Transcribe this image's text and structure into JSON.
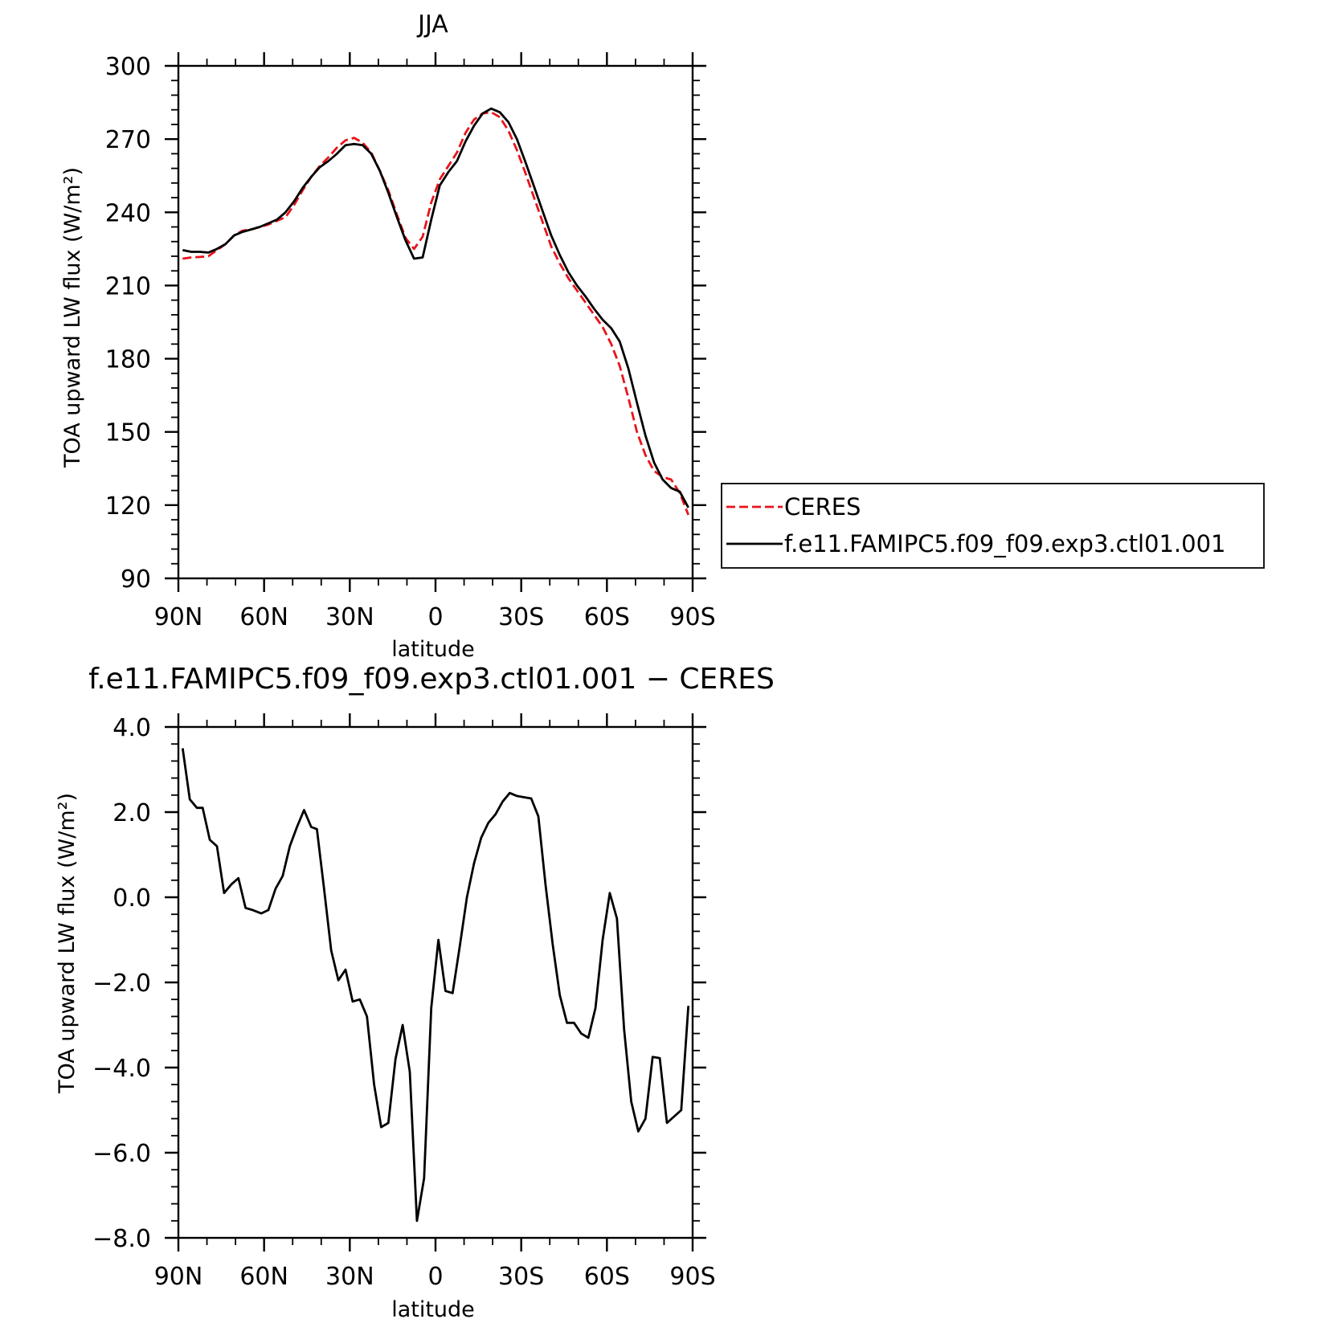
{
  "chart_data": [
    {
      "type": "line",
      "title": "JJA",
      "xlabel": "latitude",
      "ylabel": "TOA upward LW flux (W/m²)",
      "xlim": [
        -90,
        90
      ],
      "ylim": [
        90,
        300
      ],
      "x_ticks": [
        -90,
        -60,
        -30,
        0,
        30,
        60,
        90
      ],
      "x_tick_labels": [
        "90N",
        "60N",
        "30N",
        "0",
        "30S",
        "60S",
        "90S"
      ],
      "y_ticks": [
        90,
        120,
        150,
        180,
        210,
        240,
        270,
        300
      ],
      "y_tick_labels": [
        "90",
        "120",
        "150",
        "180",
        "210",
        "240",
        "270",
        "300"
      ],
      "legend": "right",
      "series": [
        {
          "name": "CERES",
          "color": "#e8141b",
          "dash": true,
          "x": [
            -88.5,
            -85.5,
            -82.5,
            -79.5,
            -76.5,
            -73.5,
            -70.5,
            -67.5,
            -64.5,
            -61.5,
            -58.5,
            -55.5,
            -52.5,
            -49.5,
            -46.5,
            -43.5,
            -40.5,
            -37.5,
            -34.5,
            -31.5,
            -28.5,
            -25.5,
            -22.5,
            -19.5,
            -16.5,
            -13.5,
            -10.5,
            -7.5,
            -4.5,
            -1.5,
            1.5,
            4.5,
            7.5,
            10.5,
            13.5,
            16.5,
            19.5,
            22.5,
            25.5,
            28.5,
            31.5,
            34.5,
            37.5,
            40.5,
            43.5,
            46.5,
            49.5,
            52.5,
            55.5,
            58.5,
            61.5,
            64.5,
            67.5,
            70.5,
            73.5,
            76.5,
            79.5,
            82.5,
            85.5,
            88.5
          ],
          "y": [
            221.0,
            221.5,
            221.7,
            222.0,
            224.5,
            227.0,
            230.5,
            232.5,
            233.0,
            234.0,
            235.0,
            236.5,
            238.0,
            243.0,
            249.0,
            254.5,
            259.0,
            262.5,
            266.5,
            269.5,
            270.5,
            268.5,
            264.5,
            257.0,
            249.0,
            239.0,
            229.5,
            225.0,
            230.0,
            244.0,
            253.5,
            259.0,
            264.5,
            272.5,
            278.0,
            280.5,
            281.0,
            279.0,
            273.5,
            265.5,
            256.0,
            246.0,
            236.0,
            226.0,
            219.0,
            213.0,
            208.0,
            203.0,
            198.0,
            193.0,
            186.0,
            177.0,
            164.0,
            150.0,
            140.5,
            134.0,
            131.5,
            130.5,
            125.0,
            116.0
          ]
        },
        {
          "name": "f.e11.FAMIPC5.f09_f09.exp3.ctl01.001",
          "color": "#000000",
          "dash": false,
          "x": [
            -88.5,
            -85.5,
            -82.5,
            -79.5,
            -76.5,
            -73.5,
            -70.5,
            -67.5,
            -64.5,
            -61.5,
            -58.5,
            -55.5,
            -52.5,
            -49.5,
            -46.5,
            -43.5,
            -40.5,
            -37.5,
            -34.5,
            -31.5,
            -28.5,
            -25.5,
            -22.5,
            -19.5,
            -16.5,
            -13.5,
            -10.5,
            -7.5,
            -4.5,
            -1.5,
            1.5,
            4.5,
            7.5,
            10.5,
            13.5,
            16.5,
            19.5,
            22.5,
            25.5,
            28.5,
            31.5,
            34.5,
            37.5,
            40.5,
            43.5,
            46.5,
            49.5,
            52.5,
            55.5,
            58.5,
            61.5,
            64.5,
            67.5,
            70.5,
            73.5,
            76.5,
            79.5,
            82.5,
            85.5,
            88.5
          ],
          "y": [
            224.5,
            223.8,
            223.8,
            223.5,
            225.0,
            227.0,
            230.5,
            232.0,
            233.0,
            234.0,
            235.5,
            237.0,
            240.0,
            244.5,
            250.0,
            254.5,
            258.5,
            261.0,
            264.0,
            267.5,
            268.0,
            267.5,
            264.0,
            257.0,
            248.0,
            238.0,
            228.5,
            221.0,
            221.5,
            237.0,
            251.0,
            256.5,
            261.0,
            269.0,
            275.5,
            280.5,
            282.5,
            281.0,
            277.0,
            270.0,
            260.5,
            250.5,
            240.5,
            230.5,
            222.5,
            215.5,
            210.0,
            205.5,
            200.5,
            196.0,
            192.5,
            187.0,
            176.0,
            162.0,
            148.5,
            137.5,
            130.5,
            127.0,
            125.5,
            119.0
          ]
        }
      ]
    },
    {
      "type": "line",
      "title": "f.e11.FAMIPC5.f09_f09.exp3.ctl01.001 − CERES",
      "xlabel": "latitude",
      "ylabel": "TOA upward LW flux (W/m²)",
      "xlim": [
        -90,
        90
      ],
      "ylim": [
        -8,
        4
      ],
      "x_ticks": [
        -90,
        -60,
        -30,
        0,
        30,
        60,
        90
      ],
      "x_tick_labels": [
        "90N",
        "60N",
        "30N",
        "0",
        "30S",
        "60S",
        "90S"
      ],
      "y_ticks": [
        -8,
        -6,
        -4,
        -2,
        0,
        2,
        4
      ],
      "y_tick_labels": [
        "−8.0",
        "−6.0",
        "−4.0",
        "−2.0",
        "0.0",
        "2.0",
        "4.0"
      ],
      "series": [
        {
          "color": "#000000",
          "dash": false,
          "x": [
            -88.5,
            -86,
            -83.5,
            -81.5,
            -79,
            -76.5,
            -74,
            -71.5,
            -69,
            -66.5,
            -64,
            -61,
            -58.5,
            -56,
            -53.5,
            -51,
            -48.5,
            -46,
            -43.5,
            -41.5,
            -39,
            -36.5,
            -34,
            -31.5,
            -29,
            -26.5,
            -24,
            -21.5,
            -19,
            -16.5,
            -14,
            -11.5,
            -9,
            -6.5,
            -4,
            -1.5,
            1,
            3.5,
            6,
            8.5,
            11,
            13.5,
            16,
            18.5,
            21,
            23.5,
            26,
            28.5,
            31,
            33.5,
            36,
            38.5,
            41,
            43.5,
            46,
            48.5,
            51,
            53.5,
            56,
            58.5,
            61,
            63.5,
            66,
            68.5,
            71,
            73.5,
            76,
            78.5,
            81,
            83.5,
            86,
            88.5
          ],
          "y": [
            3.5,
            2.3,
            2.1,
            2.1,
            1.35,
            1.2,
            0.1,
            0.3,
            0.45,
            -0.25,
            -0.3,
            -0.38,
            -0.3,
            0.2,
            0.5,
            1.2,
            1.65,
            2.05,
            1.65,
            1.6,
            0.2,
            -1.25,
            -1.95,
            -1.7,
            -2.45,
            -2.4,
            -2.8,
            -4.4,
            -5.4,
            -5.3,
            -3.8,
            -3.0,
            -4.1,
            -7.6,
            -6.6,
            -2.6,
            -1.0,
            -2.2,
            -2.25,
            -1.15,
            0.0,
            0.8,
            1.4,
            1.75,
            1.95,
            2.25,
            2.45,
            2.38,
            2.35,
            2.32,
            1.9,
            0.3,
            -1.1,
            -2.3,
            -2.95,
            -2.95,
            -3.2,
            -3.3,
            -2.6,
            -1.0,
            0.1,
            -0.5,
            -3.1,
            -4.8,
            -5.5,
            -5.2,
            -3.75,
            -3.78,
            -5.3,
            -5.15,
            -5.0,
            -2.55
          ]
        }
      ]
    }
  ]
}
